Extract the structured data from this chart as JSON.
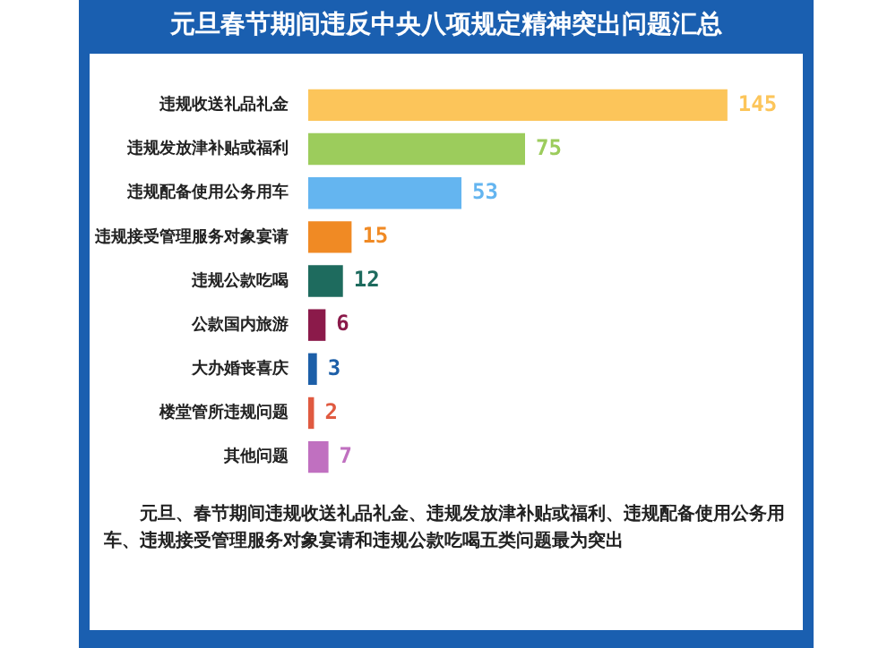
{
  "chart_data": {
    "type": "bar",
    "orientation": "horizontal",
    "title": "元旦春节期间违反中央八项规定精神突出问题汇总",
    "categories": [
      "违规收送礼品礼金",
      "违规发放津补贴或福利",
      "违规配备使用公务用车",
      "违规接受管理服务对象宴请",
      "违规公款吃喝",
      "公款国内旅游",
      "大办婚丧喜庆",
      "楼堂管所违规问题",
      "其他问题"
    ],
    "values": [
      145,
      75,
      53,
      15,
      12,
      6,
      3,
      2,
      7
    ],
    "colors": [
      "#fcc55a",
      "#9ccc5c",
      "#64b5f0",
      "#f08a24",
      "#1e6b5e",
      "#8b1a4a",
      "#1d5fa8",
      "#e05a40",
      "#c070c0"
    ],
    "data_labels": true,
    "legend": false,
    "annotations": [
      "元旦、春节期间违规收送礼品礼金、违规发放津补贴或福利、违规配备使用公务用车、违规接受管理服务对象宴请和违规公款吃喝五类问题最为突出"
    ]
  }
}
